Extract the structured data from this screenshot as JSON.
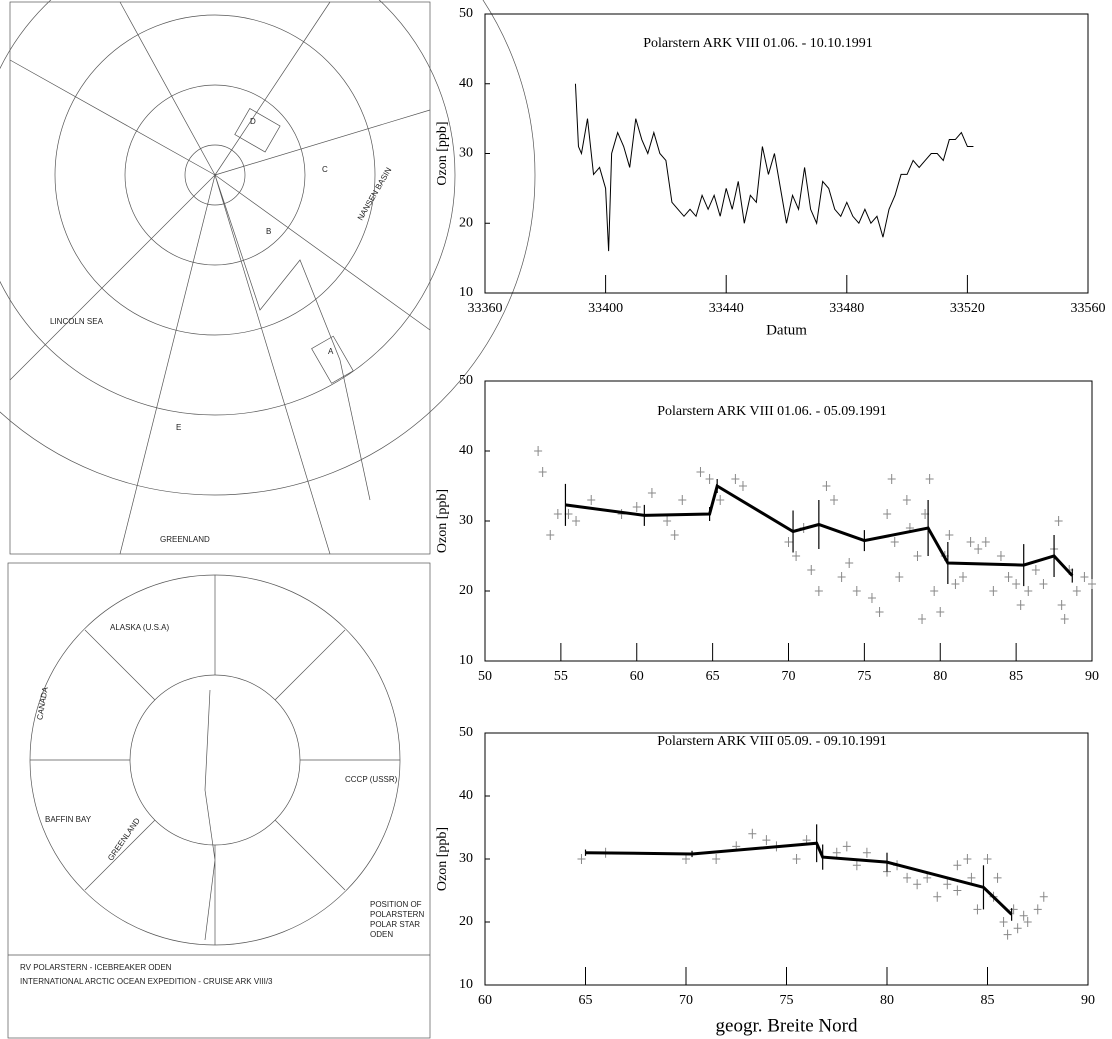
{
  "maps": [
    {
      "labels": [
        "LINCOLN SEA",
        "GREENLAND",
        "NANSEN BASIN",
        "A",
        "B",
        "C",
        "D",
        "E"
      ]
    },
    {
      "labels": [
        "ALASKA (U.S.A)",
        "CANADA",
        "GREENLAND",
        "CCCP (USSR)",
        "BAFFIN BAY",
        "POSITION OF",
        "POLARSTERN",
        "POLAR STAR",
        "ODEN",
        "RV POLARSTERN - ICEBREAKER ODEN",
        "INTERNATIONAL ARCTIC OCEAN EXPEDITION  -  CRUISE ARK VIII/3"
      ]
    }
  ],
  "chart_data": [
    {
      "type": "line",
      "title": "Polarstern ARK VIII 01.06. - 10.10.1991",
      "x_label": "Datum",
      "y_label": "Ozon [ppb]",
      "color": "#000000",
      "x": [
        33390,
        33391,
        33392,
        33394,
        33396,
        33398,
        33400,
        33401,
        33402,
        33404,
        33406,
        33408,
        33410,
        33412,
        33414,
        33416,
        33418,
        33420,
        33422,
        33424,
        33426,
        33428,
        33430,
        33432,
        33434,
        33436,
        33438,
        33440,
        33442,
        33444,
        33446,
        33448,
        33450,
        33452,
        33454,
        33456,
        33458,
        33460,
        33462,
        33464,
        33466,
        33468,
        33470,
        33472,
        33474,
        33476,
        33478,
        33480,
        33482,
        33484,
        33486,
        33488,
        33490,
        33492,
        33494,
        33496,
        33498,
        33500,
        33502,
        33504,
        33506,
        33508,
        33510,
        33512,
        33514,
        33516,
        33518,
        33520,
        33522
      ],
      "values": [
        40,
        31,
        30,
        35,
        27,
        28,
        25,
        16,
        30,
        33,
        31,
        28,
        35,
        32,
        30,
        33,
        30,
        29,
        23,
        22,
        21,
        22,
        21,
        24,
        22,
        24,
        21,
        25,
        22,
        26,
        20,
        24,
        23,
        31,
        27,
        30,
        25,
        20,
        24,
        22,
        28,
        22,
        20,
        26,
        25,
        22,
        21,
        23,
        21,
        20,
        22,
        20,
        21,
        18,
        22,
        24,
        27,
        27,
        29,
        28,
        29,
        30,
        30,
        29,
        32,
        32,
        33,
        31,
        31
      ],
      "xlim": [
        33360,
        33560
      ],
      "xticks": [
        33360,
        33400,
        33440,
        33480,
        33520,
        33560
      ],
      "ylim": [
        10,
        50
      ],
      "yticks": [
        10,
        20,
        30,
        40,
        50
      ]
    },
    {
      "type": "scatter",
      "title": "Polarstern ARK VIII     01.06. - 05.09.1991",
      "y_label": "Ozon [ppb]",
      "points": {
        "color": "#888888",
        "x": [
          53.5,
          53.8,
          54.3,
          54.8,
          55.5,
          56,
          57,
          59,
          60,
          61,
          62,
          62.5,
          63,
          64.2,
          64.8,
          65.5,
          66.5,
          67,
          70,
          70.5,
          71,
          71.5,
          72,
          72.5,
          73,
          73.5,
          74,
          74.5,
          75.5,
          76,
          76.5,
          76.8,
          77,
          77.3,
          77.8,
          78,
          78.5,
          78.8,
          79,
          79.3,
          79.6,
          80,
          80.3,
          80.6,
          81,
          81.5,
          82,
          82.5,
          83,
          83.5,
          84,
          84.5,
          85,
          85.3,
          85.8,
          86.3,
          86.8,
          87.5,
          87.8,
          88,
          88.2,
          88.5,
          89,
          89.5,
          90
        ],
        "y": [
          40,
          37,
          28,
          31,
          31,
          30,
          33,
          31,
          32,
          34,
          30,
          28,
          33,
          37,
          36,
          33,
          36,
          35,
          27,
          25,
          29,
          23,
          20,
          35,
          33,
          22,
          24,
          20,
          19,
          17,
          31,
          36,
          27,
          22,
          33,
          29,
          25,
          16,
          31,
          36,
          20,
          17,
          25,
          28,
          21,
          22,
          27,
          26,
          27,
          20,
          25,
          22,
          21,
          18,
          20,
          23,
          21,
          26,
          30,
          18,
          16,
          23,
          20,
          22,
          21
        ]
      },
      "mean_line": {
        "color": "#000000",
        "x": [
          55.3,
          60.5,
          64.8,
          65.3,
          70.3,
          72,
          75,
          79.2,
          80.5,
          85.5,
          87.5,
          88.7
        ],
        "y": [
          32.3,
          30.8,
          31,
          35,
          28.5,
          29.5,
          27.2,
          29,
          24,
          23.7,
          25,
          22.2
        ],
        "error": [
          3,
          1.5,
          1,
          1,
          3,
          3.5,
          1.5,
          4,
          3,
          3,
          3,
          1
        ]
      },
      "xlim": [
        50,
        90
      ],
      "xticks": [
        50,
        55,
        60,
        65,
        70,
        75,
        80,
        85,
        90
      ],
      "ylim": [
        10,
        50
      ],
      "yticks": [
        10,
        20,
        30,
        40,
        50
      ]
    },
    {
      "type": "scatter",
      "title": "Polarstern ARK VIII     05.09. - 09.10.1991",
      "x_label": "geogr. Breite Nord",
      "y_label": "Ozon [ppb]",
      "points": {
        "color": "#888888",
        "x": [
          64.8,
          66,
          70,
          71.5,
          72.5,
          73.3,
          74,
          74.5,
          75.5,
          76,
          77.5,
          78,
          78.5,
          79,
          80,
          80.5,
          81,
          81.5,
          82,
          82.5,
          83,
          83.5,
          83.5,
          84,
          84.2,
          84.5,
          85,
          85.3,
          85.5,
          85.8,
          86,
          86.3,
          86.5,
          86.8,
          87,
          87.5,
          87.8
        ],
        "y": [
          30,
          31,
          30,
          30,
          32,
          34,
          33,
          32,
          30,
          33,
          31,
          32,
          29,
          31,
          28,
          29,
          27,
          26,
          27,
          24,
          26,
          29,
          25,
          30,
          27,
          22,
          30,
          24,
          27,
          20,
          18,
          22,
          19,
          21,
          20,
          22,
          24
        ]
      },
      "mean_line": {
        "color": "#000000",
        "x": [
          65,
          70.3,
          76.5,
          76.8,
          80,
          84.8,
          86.2
        ],
        "y": [
          31,
          30.8,
          32.5,
          30.3,
          29.5,
          25.5,
          21.2
        ],
        "error": [
          0.5,
          0.5,
          3,
          2,
          1.5,
          3.5,
          1
        ]
      },
      "xlim": [
        60,
        90
      ],
      "xticks": [
        60,
        65,
        70,
        75,
        80,
        85,
        90
      ],
      "ylim": [
        10,
        50
      ],
      "yticks": [
        10,
        20,
        30,
        40,
        50
      ]
    }
  ]
}
